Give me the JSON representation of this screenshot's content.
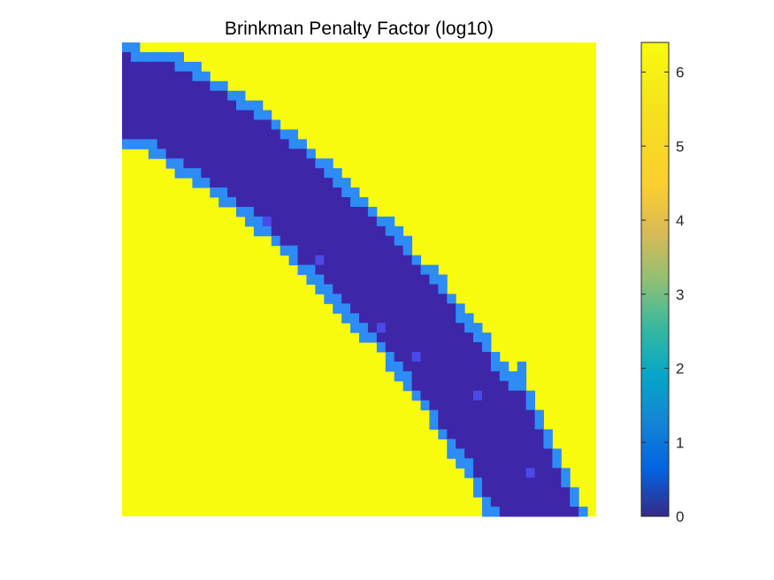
{
  "chart_data": {
    "type": "heatmap",
    "title": "Brinkman Penalty Factor (log10)",
    "xlabel": "",
    "ylabel": "",
    "grid": false,
    "axes_visible": false,
    "grid_size": {
      "cols": 54,
      "rows": 49
    },
    "levels": {
      "solid": 6.4,
      "interface": 1.8,
      "fluid": 0.15,
      "interface_patch": 1.0
    },
    "colorbar": {
      "colormap": "parula",
      "range": [
        0,
        6.4
      ],
      "ticks": [
        0,
        1,
        2,
        3,
        4,
        5,
        6
      ],
      "tick_labels": [
        "0",
        "1",
        "2",
        "3",
        "4",
        "5",
        "6"
      ],
      "placement": "right"
    },
    "band": {
      "description_units": "grid cells from top-left corner of the domain",
      "centerline_x": [
        0.0,
        5.0,
        10.0,
        15.0,
        20.0,
        25.0,
        30.0,
        35.0,
        40.0,
        45.0,
        47.2
      ],
      "centerline_y": [
        5.5,
        6.5,
        9.5,
        12.6,
        16.4,
        20.9,
        25.6,
        31.0,
        37.3,
        44.5,
        49.0
      ],
      "half_width_cells": 4.2,
      "interface_width_cells": 1.1
    },
    "colors": {
      "solid": "#f9fb0e",
      "interface": "#2d8cf6",
      "fluid": "#3e26a8",
      "patch": "#4a4ae8"
    }
  }
}
